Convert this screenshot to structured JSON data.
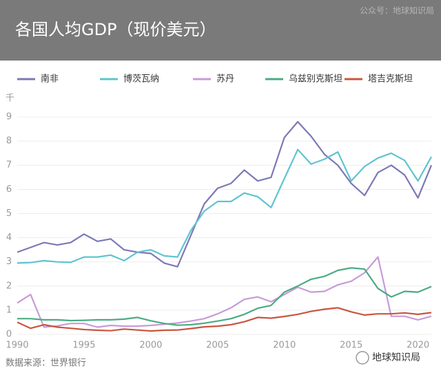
{
  "chart_data": {
    "type": "line",
    "title": "各国人均GDP（现价美元）",
    "watermark": "公众号：地球知识局",
    "y_unit": "千",
    "source": "数据来源：世界银行",
    "logo": "地球知识局",
    "x": [
      1990,
      1991,
      1992,
      1993,
      1994,
      1995,
      1996,
      1997,
      1998,
      1999,
      2000,
      2001,
      2002,
      2003,
      2004,
      2005,
      2006,
      2007,
      2008,
      2009,
      2010,
      2011,
      2012,
      2013,
      2014,
      2015,
      2016,
      2017,
      2018,
      2019,
      2020,
      2021
    ],
    "xlim": [
      1990,
      2021
    ],
    "xticks": [
      1990,
      1995,
      2000,
      2005,
      2010,
      2015,
      2020
    ],
    "ylim": [
      0,
      9
    ],
    "yticks": [
      0,
      1,
      2,
      3,
      4,
      5,
      6,
      7,
      8,
      9
    ],
    "grid": true,
    "series": [
      {
        "name": "南非",
        "color": "#7b78b5",
        "values": [
          3.4,
          3.6,
          3.8,
          3.7,
          3.8,
          4.15,
          3.85,
          3.95,
          3.5,
          3.4,
          3.35,
          2.95,
          2.8,
          4.1,
          5.4,
          6.05,
          6.25,
          6.8,
          6.35,
          6.5,
          8.15,
          8.8,
          8.2,
          7.45,
          7.0,
          6.25,
          5.75,
          6.7,
          7.0,
          6.6,
          5.65,
          7.0
        ]
      },
      {
        "name": "博茨瓦纳",
        "color": "#5ec4cf",
        "values": [
          2.95,
          2.97,
          3.05,
          3.0,
          2.98,
          3.2,
          3.2,
          3.28,
          3.05,
          3.4,
          3.5,
          3.25,
          3.2,
          4.3,
          5.1,
          5.5,
          5.5,
          5.85,
          5.7,
          5.25,
          6.45,
          7.65,
          7.05,
          7.25,
          7.55,
          6.35,
          6.95,
          7.3,
          7.5,
          7.2,
          6.35,
          7.35
        ]
      },
      {
        "name": "苏丹",
        "color": "#c89ad8",
        "values": [
          1.3,
          1.65,
          0.3,
          0.35,
          0.45,
          0.45,
          0.3,
          0.37,
          0.34,
          0.34,
          0.37,
          0.42,
          0.47,
          0.55,
          0.65,
          0.85,
          1.1,
          1.45,
          1.55,
          1.35,
          1.65,
          1.95,
          1.75,
          1.78,
          2.05,
          2.2,
          2.55,
          3.2,
          0.75,
          0.75,
          0.6,
          0.75
        ]
      },
      {
        "name": "乌兹别克斯坦",
        "color": "#4aab82",
        "values": [
          0.65,
          0.65,
          0.6,
          0.6,
          0.57,
          0.58,
          0.6,
          0.6,
          0.63,
          0.7,
          0.56,
          0.45,
          0.38,
          0.4,
          0.46,
          0.55,
          0.65,
          0.83,
          1.08,
          1.2,
          1.75,
          2.0,
          2.28,
          2.4,
          2.65,
          2.75,
          2.7,
          1.9,
          1.55,
          1.78,
          1.75,
          1.98
        ]
      },
      {
        "name": "塔吉克斯坦",
        "color": "#c9553e",
        "values": [
          0.5,
          0.25,
          0.4,
          0.3,
          0.25,
          0.2,
          0.17,
          0.15,
          0.22,
          0.18,
          0.14,
          0.17,
          0.18,
          0.24,
          0.31,
          0.34,
          0.4,
          0.52,
          0.7,
          0.67,
          0.74,
          0.83,
          0.95,
          1.04,
          1.1,
          0.93,
          0.8,
          0.85,
          0.85,
          0.89,
          0.83,
          0.9
        ]
      }
    ]
  }
}
